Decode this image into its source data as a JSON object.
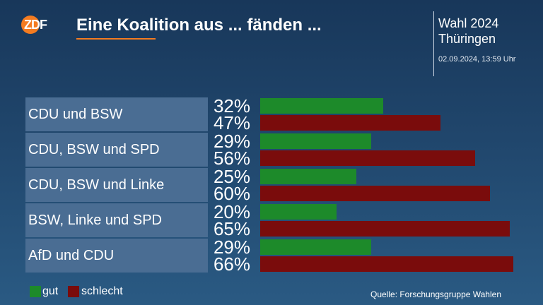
{
  "header": {
    "logo_text": "ZDF",
    "title": "Eine Koalition aus ... fänden ...",
    "info_title": "Wahl 2024\nThüringen",
    "timestamp": "02.09.2024, 13:59 Uhr"
  },
  "legend": {
    "good_label": "gut",
    "bad_label": "schlecht"
  },
  "source": "Quelle: Forschungsgruppe Wahlen",
  "colors": {
    "good": "#1d8a2a",
    "bad": "#7a0c0c",
    "accent": "#f47b20"
  },
  "chart_data": {
    "type": "bar",
    "orientation": "horizontal",
    "title": "Eine Koalition aus ... fänden ...",
    "categories": [
      "CDU und BSW",
      "CDU, BSW und SPD",
      "CDU, BSW und Linke",
      "BSW, Linke und SPD",
      "AfD und CDU"
    ],
    "series": [
      {
        "name": "gut",
        "values": [
          32,
          29,
          25,
          20,
          29
        ],
        "labels": [
          "32%",
          "29%",
          "25%",
          "20%",
          "29%"
        ]
      },
      {
        "name": "schlecht",
        "values": [
          47,
          56,
          60,
          65,
          66
        ],
        "labels": [
          "47%",
          "56%",
          "60%",
          "65%",
          "66%"
        ]
      }
    ],
    "xlim": [
      0,
      66
    ],
    "grid": false,
    "legend_position": "bottom-left"
  }
}
